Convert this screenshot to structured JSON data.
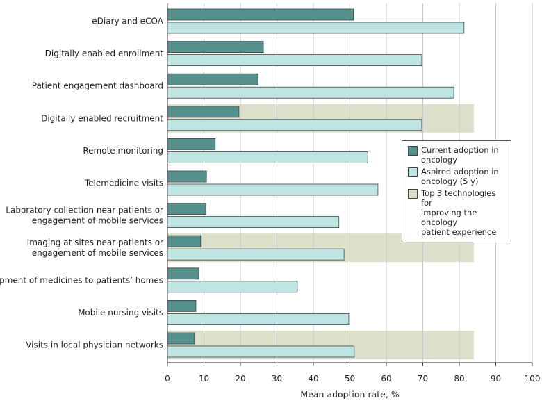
{
  "chart_data": {
    "type": "bar",
    "orientation": "horizontal",
    "categories": [
      "eDiary and eCOA",
      "Digitally enabled enrollment",
      "Patient engagement dashboard",
      "Digitally enabled recruitment",
      "Remote monitoring",
      "Telemedicine visits",
      "Laboratory collection near patients or\nengagement of mobile services",
      "Imaging at sites near patients or\nengagement of mobile services",
      "Shipment of medicines to patients’ homes",
      "Mobile nursing visits",
      "Visits in local physician networks"
    ],
    "series": [
      {
        "name": "Current adoption in oncology",
        "color": "#55908c",
        "values": [
          51,
          26.3,
          24.8,
          19.6,
          13.1,
          10.7,
          10.5,
          9.1,
          8.6,
          7.8,
          7.4
        ]
      },
      {
        "name": "Aspired adoption in oncology (5 y)",
        "color": "#bfe5e2",
        "values": [
          81.3,
          69.7,
          78.5,
          69.7,
          54.9,
          57.7,
          47,
          48.4,
          35.6,
          49.7,
          51.2
        ]
      }
    ],
    "highlight": {
      "name": "Top 3 technologies for improving the oncology patient experience",
      "color": "#dcdfc9",
      "categories": [
        3,
        7,
        10
      ],
      "extent": 84
    },
    "xlabel": "Mean adoption rate, %",
    "xlim": [
      0,
      100
    ],
    "xticks": [
      0,
      10,
      20,
      30,
      40,
      50,
      60,
      70,
      80,
      90,
      100
    ],
    "grid": true,
    "legend_position": "right-middle"
  },
  "legend": {
    "current_l1": "Current adoption in",
    "current_l2": "oncology",
    "aspired_l1": "Aspired adoption in",
    "aspired_l2": "oncology (5 y)",
    "top3_l1": "Top 3 technologies for",
    "top3_l2": "improving the oncology",
    "top3_l3": "patient experience"
  }
}
